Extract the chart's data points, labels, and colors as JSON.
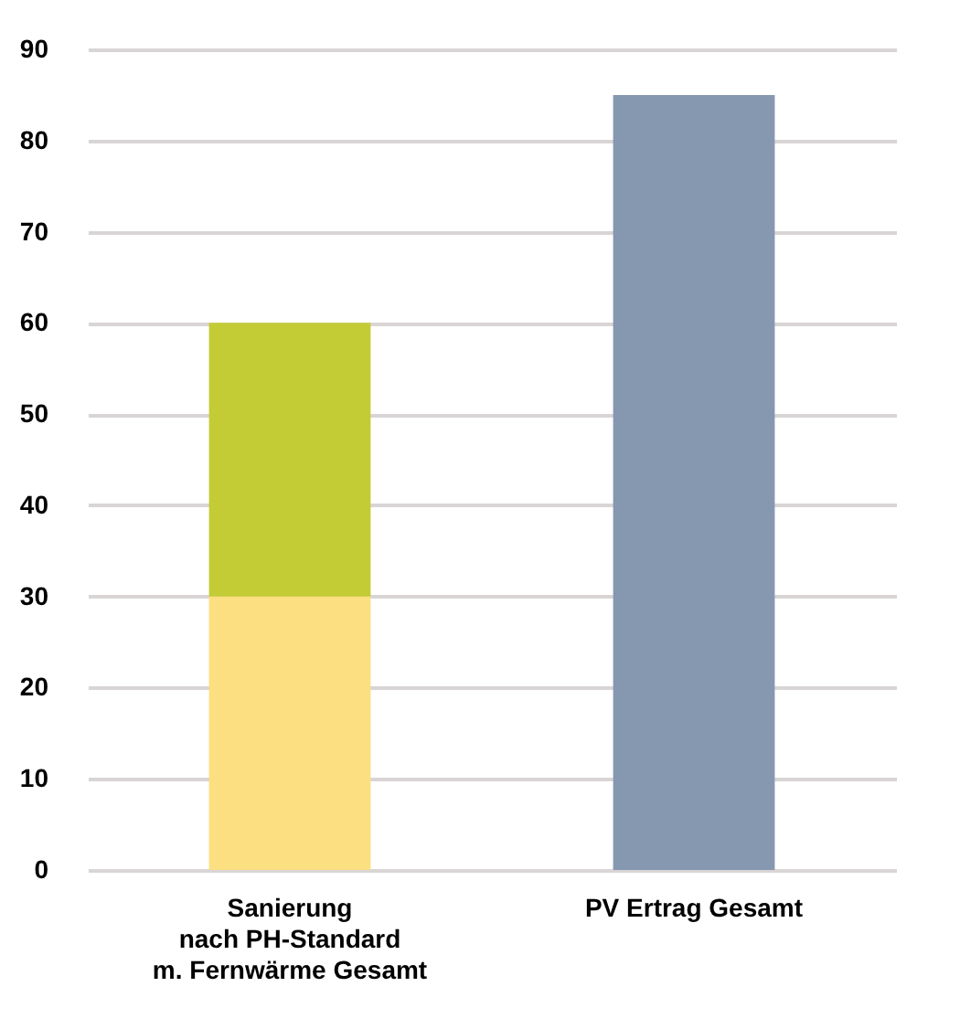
{
  "chart_data": {
    "type": "bar",
    "stacked": true,
    "categories": [
      "Sanierung\nnach PH-Standard\nm. Fernwärme Gesamt",
      "PV Ertrag Gesamt"
    ],
    "series": [
      {
        "color": "#fcdf80",
        "values": [
          30,
          null
        ]
      },
      {
        "color": "#c3cc35",
        "values": [
          30,
          null
        ]
      },
      {
        "color": "#8697b0",
        "values": [
          null,
          85
        ]
      }
    ],
    "ylim": [
      0,
      90
    ],
    "yticks": [
      0,
      10,
      20,
      30,
      40,
      50,
      60,
      70,
      80,
      90
    ],
    "grid": "y"
  }
}
